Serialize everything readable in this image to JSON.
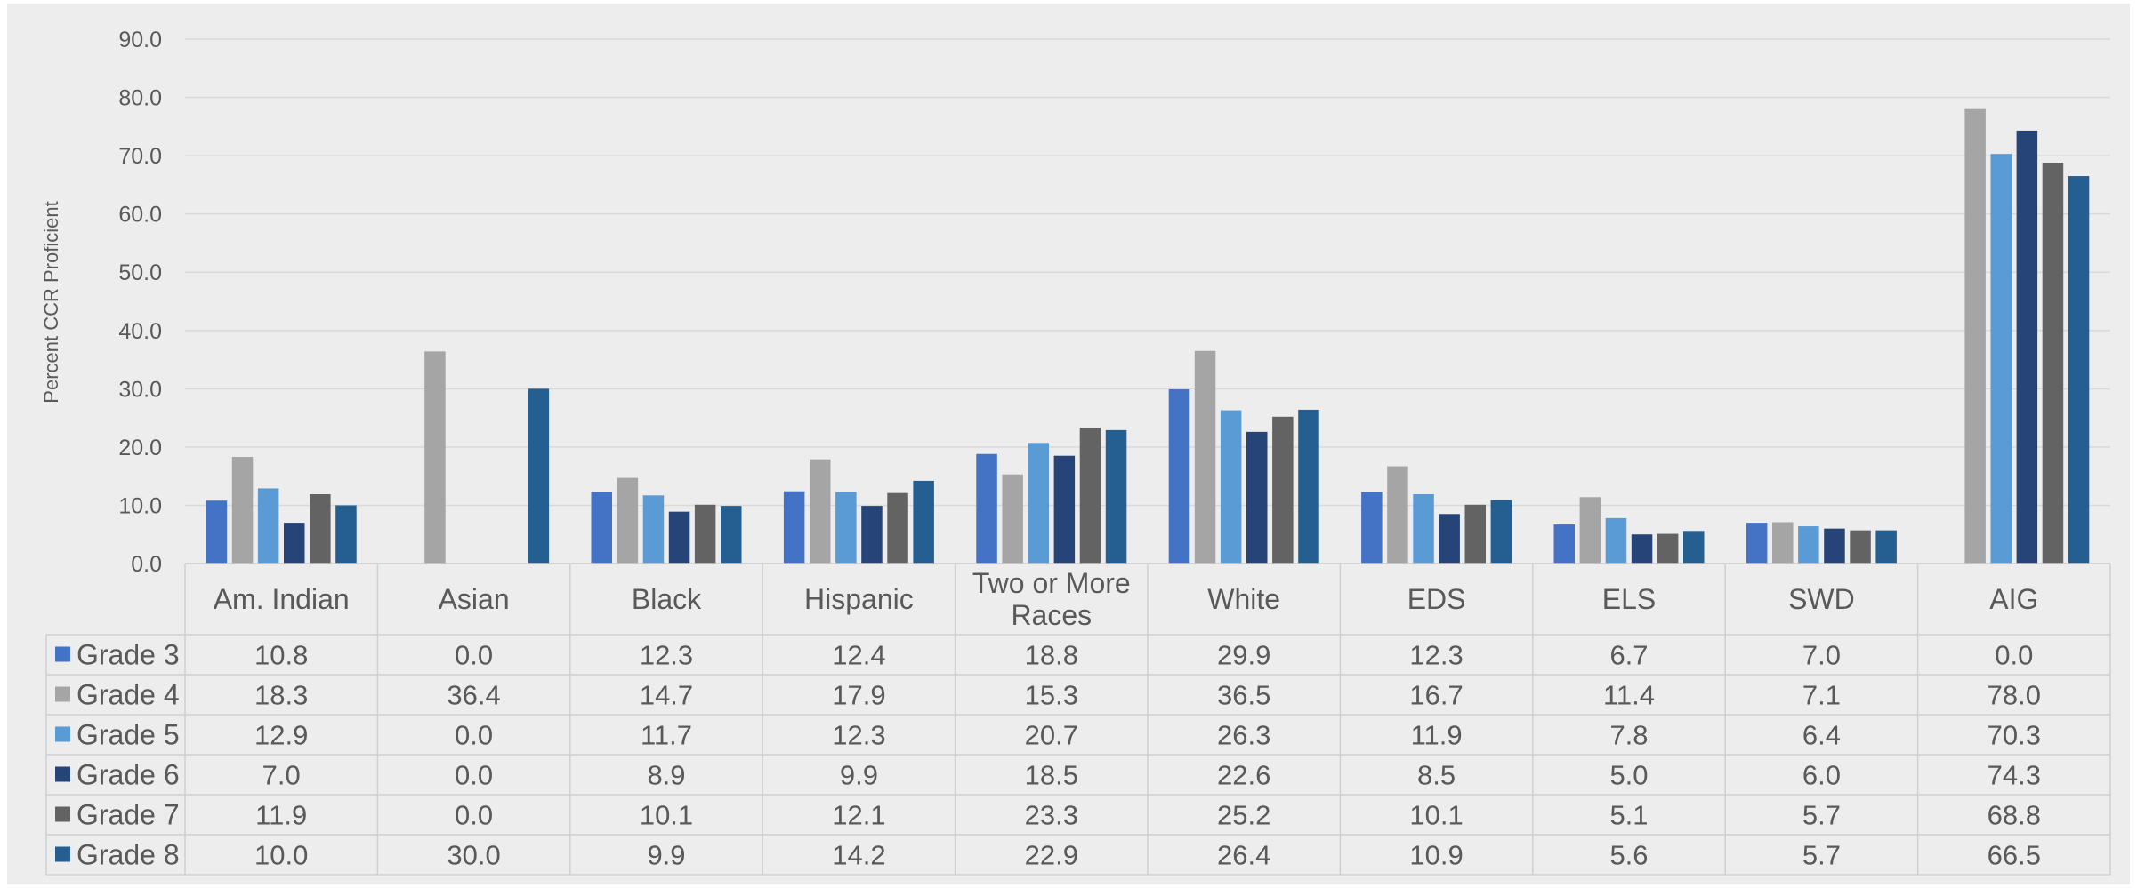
{
  "chart_data": {
    "type": "bar",
    "ylabel": "Percent CCR Proficient",
    "xlabel": "",
    "ylim": [
      0,
      90
    ],
    "yticks": [
      "0.0",
      "10.0",
      "20.0",
      "30.0",
      "40.0",
      "50.0",
      "60.0",
      "70.0",
      "80.0",
      "90.0"
    ],
    "grid": true,
    "legend": "data-table",
    "categories": [
      [
        "Am. Indian"
      ],
      [
        "Asian"
      ],
      [
        "Black"
      ],
      [
        "Hispanic"
      ],
      [
        "Two or More",
        "Races"
      ],
      [
        "White"
      ],
      [
        "EDS"
      ],
      [
        "ELS"
      ],
      [
        "SWD"
      ],
      [
        "AIG"
      ]
    ],
    "series": [
      {
        "name": "Grade 3",
        "color": "#4472C4",
        "values": [
          10.8,
          0.0,
          12.3,
          12.4,
          18.8,
          29.9,
          12.3,
          6.7,
          7.0,
          0.0
        ],
        "labels": [
          "10.8",
          "0.0",
          "12.3",
          "12.4",
          "18.8",
          "29.9",
          "12.3",
          "6.7",
          "7.0",
          "0.0"
        ]
      },
      {
        "name": "Grade 4",
        "color": "#A5A5A5",
        "values": [
          18.3,
          36.4,
          14.7,
          17.9,
          15.3,
          36.5,
          16.7,
          11.4,
          7.1,
          78.0
        ],
        "labels": [
          "18.3",
          "36.4",
          "14.7",
          "17.9",
          "15.3",
          "36.5",
          "16.7",
          "11.4",
          "7.1",
          "78.0"
        ]
      },
      {
        "name": "Grade 5",
        "color": "#5B9BD5",
        "values": [
          12.9,
          0.0,
          11.7,
          12.3,
          20.7,
          26.3,
          11.9,
          7.8,
          6.4,
          70.3
        ],
        "labels": [
          "12.9",
          "0.0",
          "11.7",
          "12.3",
          "20.7",
          "26.3",
          "11.9",
          "7.8",
          "6.4",
          "70.3"
        ]
      },
      {
        "name": "Grade 6",
        "color": "#264478",
        "values": [
          7.0,
          0.0,
          8.9,
          9.9,
          18.5,
          22.6,
          8.5,
          5.0,
          6.0,
          74.3
        ],
        "labels": [
          "7.0",
          "0.0",
          "8.9",
          "9.9",
          "18.5",
          "22.6",
          "8.5",
          "5.0",
          "6.0",
          "74.3"
        ]
      },
      {
        "name": "Grade 7",
        "color": "#636363",
        "values": [
          11.9,
          0.0,
          10.1,
          12.1,
          23.3,
          25.2,
          10.1,
          5.1,
          5.7,
          68.8
        ],
        "labels": [
          "11.9",
          "0.0",
          "10.1",
          "12.1",
          "23.3",
          "25.2",
          "10.1",
          "5.1",
          "5.7",
          "68.8"
        ]
      },
      {
        "name": "Grade 8",
        "color": "#255E91",
        "values": [
          10.0,
          30.0,
          9.9,
          14.2,
          22.9,
          26.4,
          10.9,
          5.6,
          5.7,
          66.5
        ],
        "labels": [
          "10.0",
          "30.0",
          "9.9",
          "14.2",
          "22.9",
          "26.4",
          "10.9",
          "5.6",
          "5.7",
          "66.5"
        ]
      }
    ]
  }
}
